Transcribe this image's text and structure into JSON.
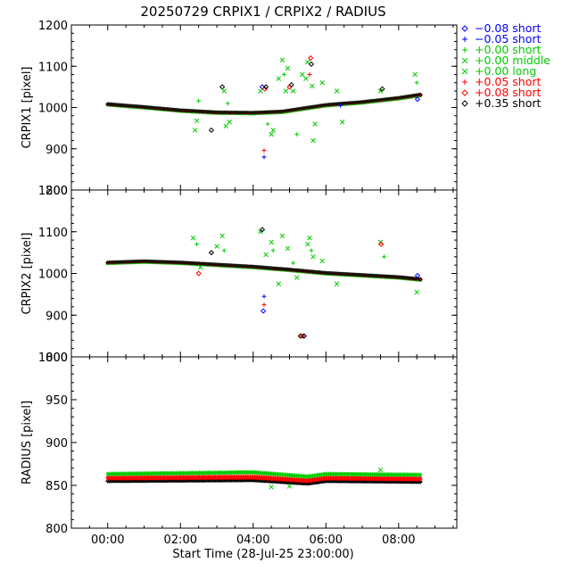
{
  "title": "20250729 CRPIX1 / CRPIX2 / RADIUS",
  "xlabel": "Start Time (28-Jul-25 23:00:00)",
  "xtick_labels": [
    "00:00",
    "02:00",
    "04:00",
    "06:00",
    "08:00"
  ],
  "legend": [
    {
      "label": "−0.08 short",
      "symbol": "diamond",
      "color": "#0000ff"
    },
    {
      "label": "−0.05 short",
      "symbol": "plus",
      "color": "#0000ff"
    },
    {
      "label": "+0.00 short",
      "symbol": "plus",
      "color": "#00cc00"
    },
    {
      "label": "+0.00 middle",
      "symbol": "x",
      "color": "#00cc00"
    },
    {
      "label": "+0.00 long",
      "symbol": "x",
      "color": "#00cc00"
    },
    {
      "label": "+0.05 short",
      "symbol": "plus",
      "color": "#ff0000"
    },
    {
      "label": "+0.08 short",
      "symbol": "diamond",
      "color": "#ff0000"
    },
    {
      "label": "+0.35 short",
      "symbol": "diamond",
      "color": "#000000"
    }
  ],
  "chart_data": [
    {
      "type": "scatter",
      "ylabel": "CRPIX1 [pixel]",
      "xlim": [
        -1,
        9.6
      ],
      "ylim": [
        800,
        1200
      ],
      "yticks": [
        800,
        900,
        1000,
        1100,
        1200
      ],
      "x_unit": "hours since 28-Jul-25 23:00:00",
      "baseline": [
        [
          0,
          1007
        ],
        [
          1,
          1000
        ],
        [
          2,
          992
        ],
        [
          3,
          987
        ],
        [
          4,
          986
        ],
        [
          4.8,
          989
        ],
        [
          5.4,
          997
        ],
        [
          6,
          1005
        ],
        [
          7,
          1012
        ],
        [
          8,
          1022
        ],
        [
          8.6,
          1030
        ]
      ],
      "outliers": [
        {
          "x": 2.4,
          "y": 945,
          "series": 3
        },
        {
          "x": 2.45,
          "y": 968,
          "series": 4
        },
        {
          "x": 2.5,
          "y": 1016,
          "series": 2
        },
        {
          "x": 3.15,
          "y": 1050,
          "series": 7
        },
        {
          "x": 3.2,
          "y": 1040,
          "series": 3
        },
        {
          "x": 3.25,
          "y": 955,
          "series": 4
        },
        {
          "x": 3.3,
          "y": 1010,
          "series": 2
        },
        {
          "x": 3.35,
          "y": 965,
          "series": 3
        },
        {
          "x": 2.85,
          "y": 945,
          "series": 7
        },
        {
          "x": 4.2,
          "y": 1040,
          "series": 3
        },
        {
          "x": 4.25,
          "y": 1050,
          "series": 0
        },
        {
          "x": 4.3,
          "y": 880,
          "series": 1
        },
        {
          "x": 4.3,
          "y": 896,
          "series": 5
        },
        {
          "x": 4.32,
          "y": 1045,
          "series": 6
        },
        {
          "x": 4.35,
          "y": 1050,
          "series": 7
        },
        {
          "x": 4.4,
          "y": 960,
          "series": 2
        },
        {
          "x": 4.5,
          "y": 935,
          "series": 4
        },
        {
          "x": 4.55,
          "y": 945,
          "series": 3
        },
        {
          "x": 4.7,
          "y": 1070,
          "series": 3
        },
        {
          "x": 4.8,
          "y": 1115,
          "series": 4
        },
        {
          "x": 4.85,
          "y": 1080,
          "series": 2
        },
        {
          "x": 4.9,
          "y": 1040,
          "series": 3
        },
        {
          "x": 4.95,
          "y": 1095,
          "series": 4
        },
        {
          "x": 5.0,
          "y": 1050,
          "series": 6
        },
        {
          "x": 5.05,
          "y": 1055,
          "series": 7
        },
        {
          "x": 5.1,
          "y": 1040,
          "series": 3
        },
        {
          "x": 5.2,
          "y": 935,
          "series": 2
        },
        {
          "x": 5.35,
          "y": 1080,
          "series": 3
        },
        {
          "x": 5.45,
          "y": 1070,
          "series": 3
        },
        {
          "x": 5.5,
          "y": 1110,
          "series": 4
        },
        {
          "x": 5.55,
          "y": 1080,
          "series": 5
        },
        {
          "x": 5.58,
          "y": 1120,
          "series": 6
        },
        {
          "x": 5.6,
          "y": 1105,
          "series": 7
        },
        {
          "x": 5.62,
          "y": 1052,
          "series": 3
        },
        {
          "x": 5.65,
          "y": 920,
          "series": 4
        },
        {
          "x": 5.7,
          "y": 960,
          "series": 3
        },
        {
          "x": 5.9,
          "y": 1060,
          "series": 3
        },
        {
          "x": 6.3,
          "y": 1040,
          "series": 3
        },
        {
          "x": 6.4,
          "y": 1005,
          "series": 1
        },
        {
          "x": 6.45,
          "y": 965,
          "series": 3
        },
        {
          "x": 7.5,
          "y": 1040,
          "series": 3
        },
        {
          "x": 7.55,
          "y": 1045,
          "series": 7
        },
        {
          "x": 8.45,
          "y": 1080,
          "series": 3
        },
        {
          "x": 8.5,
          "y": 1060,
          "series": 2
        },
        {
          "x": 8.52,
          "y": 1020,
          "series": 0
        }
      ]
    },
    {
      "type": "scatter",
      "ylabel": "CRPIX2 [pixel]",
      "xlim": [
        -1,
        9.6
      ],
      "ylim": [
        800,
        1200
      ],
      "yticks": [
        800,
        900,
        1000,
        1100,
        1200
      ],
      "x_unit": "hours since 28-Jul-25 23:00:00",
      "baseline": [
        [
          0,
          1025
        ],
        [
          1,
          1028
        ],
        [
          2,
          1025
        ],
        [
          3,
          1020
        ],
        [
          4,
          1015
        ],
        [
          5,
          1008
        ],
        [
          6,
          1000
        ],
        [
          7,
          995
        ],
        [
          8,
          990
        ],
        [
          8.6,
          985
        ]
      ],
      "outliers": [
        {
          "x": 2.35,
          "y": 1085,
          "series": 3
        },
        {
          "x": 2.45,
          "y": 1070,
          "series": 2
        },
        {
          "x": 2.5,
          "y": 1000,
          "series": 6
        },
        {
          "x": 2.55,
          "y": 1015,
          "series": 4
        },
        {
          "x": 2.85,
          "y": 1050,
          "series": 7
        },
        {
          "x": 3.0,
          "y": 1065,
          "series": 3
        },
        {
          "x": 3.15,
          "y": 1090,
          "series": 4
        },
        {
          "x": 3.2,
          "y": 1055,
          "series": 2
        },
        {
          "x": 4.2,
          "y": 1100,
          "series": 3
        },
        {
          "x": 4.25,
          "y": 1105,
          "series": 7
        },
        {
          "x": 4.28,
          "y": 910,
          "series": 0
        },
        {
          "x": 4.3,
          "y": 925,
          "series": 5
        },
        {
          "x": 4.3,
          "y": 945,
          "series": 1
        },
        {
          "x": 4.35,
          "y": 1045,
          "series": 3
        },
        {
          "x": 4.5,
          "y": 1075,
          "series": 4
        },
        {
          "x": 4.55,
          "y": 1055,
          "series": 2
        },
        {
          "x": 4.7,
          "y": 975,
          "series": 3
        },
        {
          "x": 4.8,
          "y": 1090,
          "series": 3
        },
        {
          "x": 4.95,
          "y": 1060,
          "series": 4
        },
        {
          "x": 5.1,
          "y": 1025,
          "series": 2
        },
        {
          "x": 5.2,
          "y": 990,
          "series": 3
        },
        {
          "x": 5.3,
          "y": 850,
          "series": 7
        },
        {
          "x": 5.35,
          "y": 850,
          "series": 6
        },
        {
          "x": 5.4,
          "y": 850,
          "series": 7
        },
        {
          "x": 5.5,
          "y": 1070,
          "series": 3
        },
        {
          "x": 5.55,
          "y": 1085,
          "series": 4
        },
        {
          "x": 5.6,
          "y": 1055,
          "series": 2
        },
        {
          "x": 5.65,
          "y": 1040,
          "series": 3
        },
        {
          "x": 5.9,
          "y": 1030,
          "series": 3
        },
        {
          "x": 6.3,
          "y": 975,
          "series": 4
        },
        {
          "x": 7.5,
          "y": 1075,
          "series": 3
        },
        {
          "x": 7.52,
          "y": 1070,
          "series": 6
        },
        {
          "x": 7.6,
          "y": 1040,
          "series": 2
        },
        {
          "x": 8.5,
          "y": 955,
          "series": 3
        },
        {
          "x": 8.52,
          "y": 995,
          "series": 0
        }
      ]
    },
    {
      "type": "scatter",
      "ylabel": "RADIUS [pixel]",
      "xlim": [
        -1,
        9.6
      ],
      "ylim": [
        800,
        1000
      ],
      "yticks": [
        800,
        850,
        900,
        950,
        1000
      ],
      "x_unit": "hours since 28-Jul-25 23:00:00",
      "bands": [
        {
          "series": 7,
          "baseline": [
            [
              0,
              855
            ],
            [
              4,
              856
            ],
            [
              5.5,
              852
            ],
            [
              6,
              855
            ],
            [
              8.6,
              854
            ]
          ]
        },
        {
          "series": 6,
          "baseline": [
            [
              0,
              858
            ],
            [
              4,
              859
            ],
            [
              5.5,
              855
            ],
            [
              6,
              858
            ],
            [
              8.6,
              857
            ]
          ]
        },
        {
          "series": 5,
          "baseline": [
            [
              0,
              860
            ],
            [
              4,
              861
            ],
            [
              5.5,
              857
            ],
            [
              6,
              860
            ],
            [
              8.6,
              859
            ]
          ]
        },
        {
          "series": 4,
          "baseline": [
            [
              0,
              863
            ],
            [
              4,
              865
            ],
            [
              5.5,
              860
            ],
            [
              6,
              863
            ],
            [
              8.6,
              862
            ]
          ]
        },
        {
          "series": 2,
          "baseline": [
            [
              0,
              864
            ],
            [
              4,
              866
            ],
            [
              5.5,
              861
            ],
            [
              6,
              864
            ],
            [
              8.6,
              863
            ]
          ]
        }
      ],
      "outliers": [
        {
          "x": 4.5,
          "y": 848,
          "series": 4
        },
        {
          "x": 5.0,
          "y": 849,
          "series": 3
        },
        {
          "x": 7.5,
          "y": 868,
          "series": 3
        }
      ]
    }
  ]
}
